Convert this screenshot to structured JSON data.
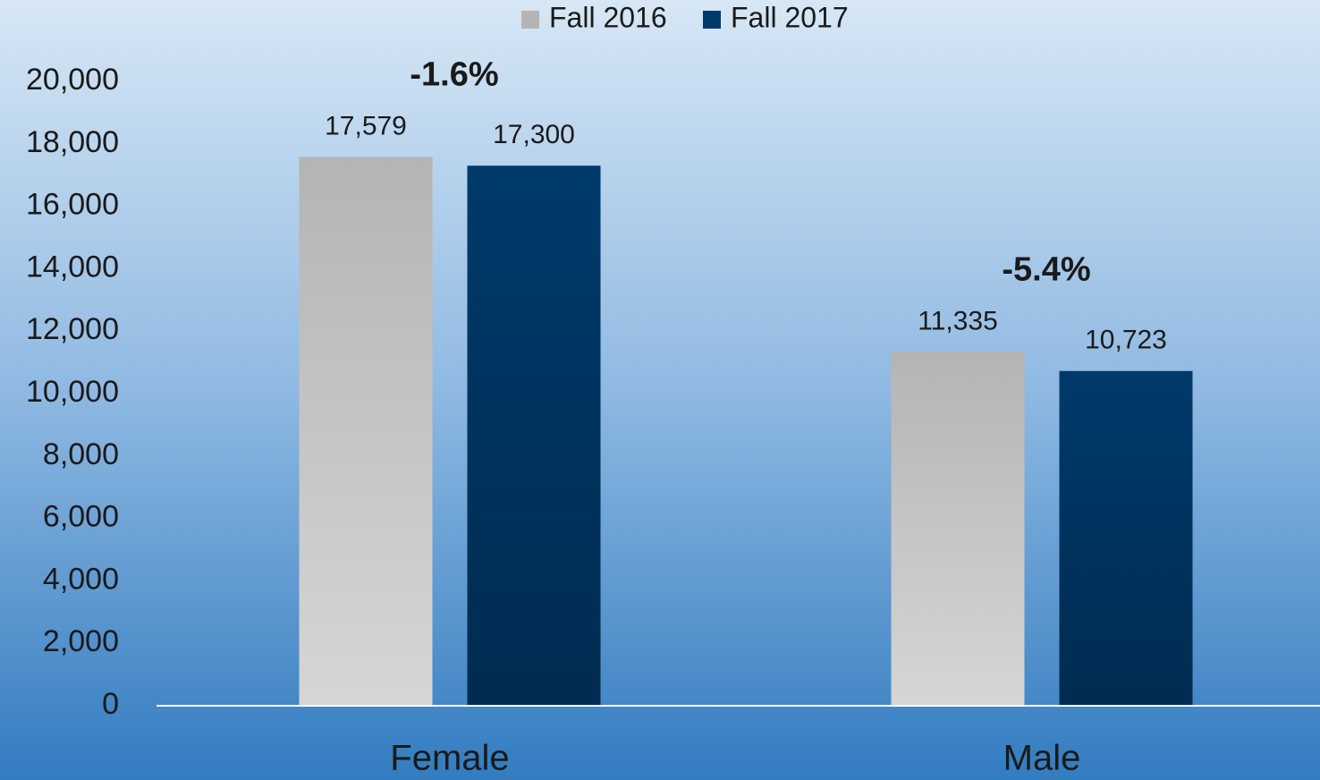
{
  "chart_data": {
    "type": "bar",
    "categories": [
      "Female",
      "Male"
    ],
    "series": [
      {
        "name": "Fall 2016",
        "color": "#b4b4b4",
        "values": [
          17579,
          11335
        ],
        "value_labels": [
          "17,579",
          "11,335"
        ]
      },
      {
        "name": "Fall 2017",
        "color": "#003a6b",
        "values": [
          17300,
          10723
        ],
        "value_labels": [
          "17,300",
          "10,723"
        ]
      }
    ],
    "annotations": [
      "-1.6%",
      "-5.4%"
    ],
    "ylim": [
      0,
      20000
    ],
    "yticks": [
      0,
      {
        "value": 2000,
        "label": "2,000"
      },
      {
        "value": 4000,
        "label": "4,000"
      },
      {
        "value": 6000,
        "label": "6,000"
      },
      {
        "value": 8000,
        "label": "8,000"
      },
      {
        "value": 10000,
        "label": "10,000"
      },
      {
        "value": 12000,
        "label": "12,000"
      },
      {
        "value": 14000,
        "label": "14,000"
      },
      {
        "value": 16000,
        "label": "16,000"
      },
      {
        "value": 18000,
        "label": "18,000"
      },
      {
        "value": 20000,
        "label": "20,000"
      }
    ],
    "grid": false,
    "legend": "top"
  }
}
